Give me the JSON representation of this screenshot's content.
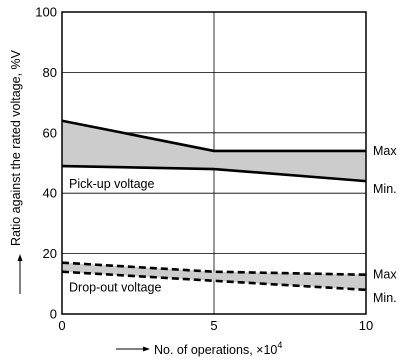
{
  "chart_data": {
    "type": "area",
    "xlabel": "No. of operations, ×10",
    "xlabel_exponent": "4",
    "ylabel": "Ratio against the rated voltage, %V",
    "xlim": [
      0,
      10
    ],
    "ylim": [
      0,
      100
    ],
    "x_ticks": [
      "0",
      "5",
      "10"
    ],
    "y_ticks": [
      "0",
      "20",
      "40",
      "60",
      "80",
      "100"
    ],
    "grid": true,
    "bands": [
      {
        "label": "Pick-up voltage",
        "fill": "#cccccc",
        "line_style": "solid",
        "x": [
          0,
          5,
          10
        ],
        "max": [
          64,
          54,
          54
        ],
        "min": [
          49,
          48,
          44
        ],
        "max_label": "Max",
        "min_label": "Min."
      },
      {
        "label": "Drop-out voltage",
        "fill": "#cccccc",
        "line_style": "dashed",
        "x": [
          0,
          5,
          10
        ],
        "max": [
          17,
          14,
          13
        ],
        "min": [
          14,
          11,
          8
        ],
        "max_label": "Max",
        "min_label": "Min."
      }
    ]
  }
}
